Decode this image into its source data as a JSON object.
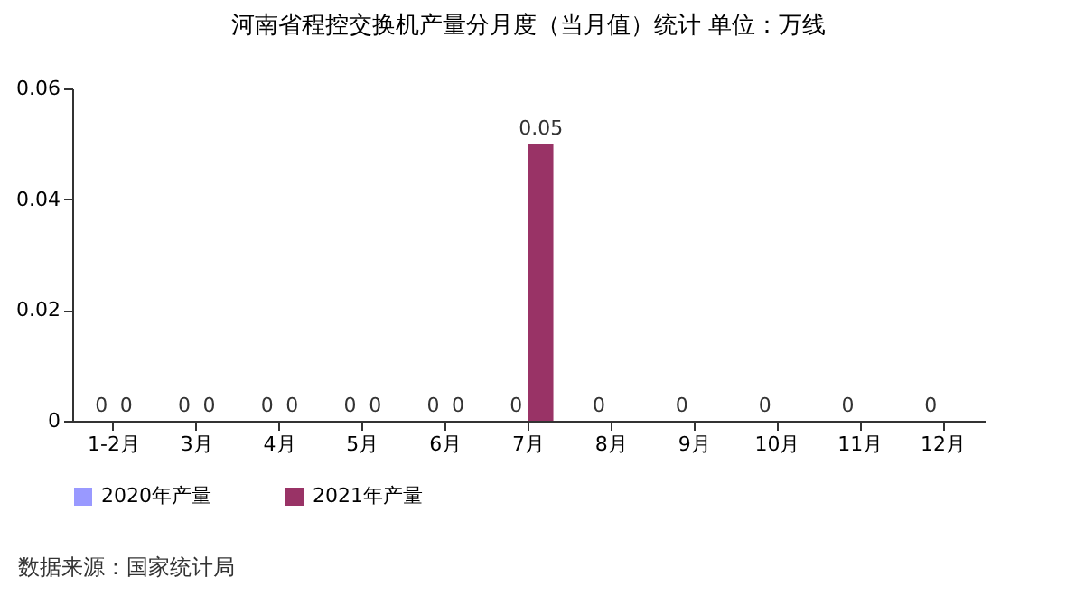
{
  "chart_data": {
    "type": "bar",
    "title": "河南省程控交换机产量分月度（当月值）统计 单位：万线",
    "categories": [
      "1-2月",
      "3月",
      "4月",
      "5月",
      "6月",
      "7月",
      "8月",
      "9月",
      "10月",
      "11月",
      "12月"
    ],
    "series": [
      {
        "name": "2020年产量",
        "color": "#9999ff",
        "values": [
          0,
          0,
          0,
          0,
          0,
          0,
          0,
          0,
          0,
          0,
          0
        ]
      },
      {
        "name": "2021年产量",
        "color": "#993366",
        "values": [
          0,
          0,
          0,
          0,
          0,
          0.05,
          null,
          null,
          null,
          null,
          null
        ]
      }
    ],
    "ylim": [
      0,
      0.06
    ],
    "yticks": [
      0,
      0.02,
      0.04,
      0.06
    ],
    "grid": false,
    "legend": "bottom",
    "data_labels": true,
    "annotations": [
      "数据来源：国家统计局"
    ]
  }
}
